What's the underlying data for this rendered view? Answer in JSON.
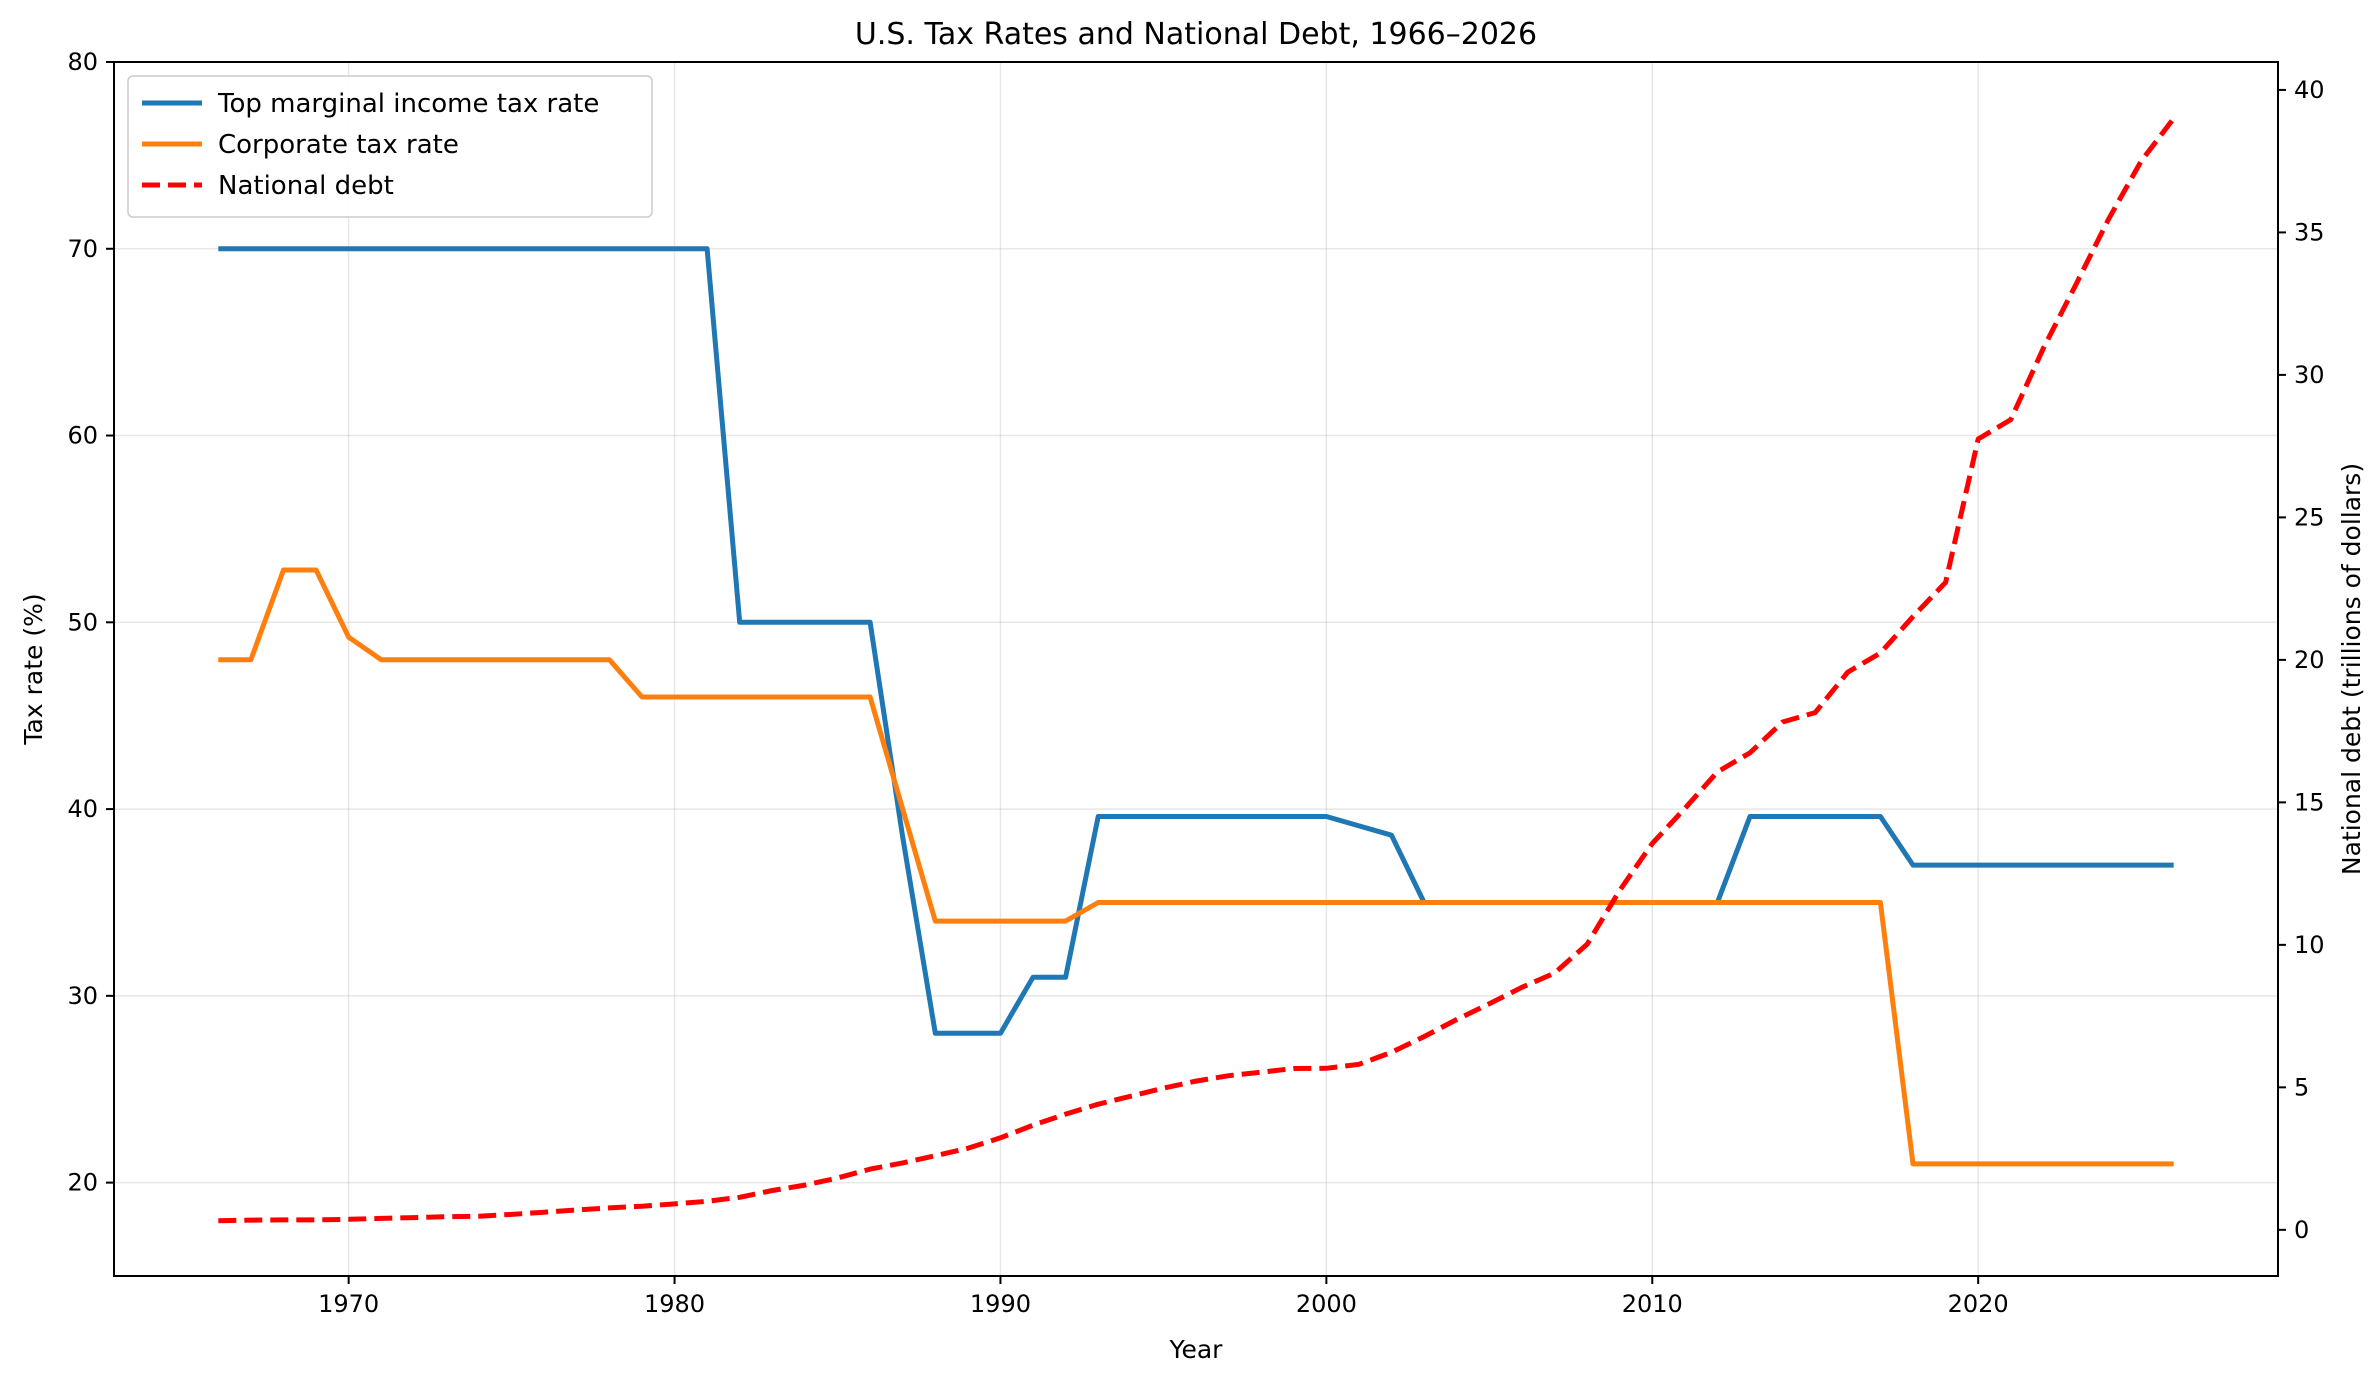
{
  "chart_data": {
    "type": "line",
    "title": "U.S. Tax Rates and National Debt, 1966–2026",
    "xlabel": "Year",
    "ylabel_left": "Tax rate (%)",
    "ylabel_right": "National debt (trillions of dollars)",
    "xlim": [
      1962.8,
      2029.2
    ],
    "ylim_left": [
      15,
      80
    ],
    "ylim_right": [
      -1.62,
      40.98
    ],
    "xticks": [
      1970,
      1980,
      1990,
      2000,
      2010,
      2020
    ],
    "yticks_left": [
      20,
      30,
      40,
      50,
      60,
      70,
      80
    ],
    "yticks_right": [
      0,
      5,
      10,
      15,
      20,
      25,
      30,
      35,
      40
    ],
    "grid": true,
    "legend_position": "upper-left",
    "x": [
      1966,
      1967,
      1968,
      1969,
      1970,
      1971,
      1972,
      1973,
      1974,
      1975,
      1976,
      1977,
      1978,
      1979,
      1980,
      1981,
      1982,
      1983,
      1984,
      1985,
      1986,
      1987,
      1988,
      1989,
      1990,
      1991,
      1992,
      1993,
      1994,
      1995,
      1996,
      1997,
      1998,
      1999,
      2000,
      2001,
      2002,
      2003,
      2004,
      2005,
      2006,
      2007,
      2008,
      2009,
      2010,
      2011,
      2012,
      2013,
      2014,
      2015,
      2016,
      2017,
      2018,
      2019,
      2020,
      2021,
      2022,
      2023,
      2024,
      2025,
      2026
    ],
    "series": [
      {
        "name": "Top marginal income tax rate",
        "axis": "left",
        "color": "#1f77b4",
        "style": "solid",
        "values": [
          70,
          70,
          70,
          70,
          70,
          70,
          70,
          70,
          70,
          70,
          70,
          70,
          70,
          70,
          70,
          70,
          50,
          50,
          50,
          50,
          50,
          38.5,
          28,
          28,
          28,
          31,
          31,
          39.6,
          39.6,
          39.6,
          39.6,
          39.6,
          39.6,
          39.6,
          39.6,
          39.1,
          38.6,
          35,
          35,
          35,
          35,
          35,
          35,
          35,
          35,
          35,
          35,
          39.6,
          39.6,
          39.6,
          39.6,
          39.6,
          37,
          37,
          37,
          37,
          37,
          37,
          37,
          37,
          37
        ]
      },
      {
        "name": "Corporate tax rate",
        "axis": "left",
        "color": "#ff7f0e",
        "style": "solid",
        "values": [
          48,
          48,
          52.8,
          52.8,
          49.2,
          48,
          48,
          48,
          48,
          48,
          48,
          48,
          48,
          46,
          46,
          46,
          46,
          46,
          46,
          46,
          46,
          40,
          34,
          34,
          34,
          34,
          34,
          35,
          35,
          35,
          35,
          35,
          35,
          35,
          35,
          35,
          35,
          35,
          35,
          35,
          35,
          35,
          35,
          35,
          35,
          35,
          35,
          35,
          35,
          35,
          35,
          35,
          21,
          21,
          21,
          21,
          21,
          21,
          21,
          21,
          21
        ]
      },
      {
        "name": "National debt",
        "axis": "right",
        "color": "#ff0000",
        "style": "dashed",
        "values": [
          0.32,
          0.34,
          0.35,
          0.35,
          0.37,
          0.4,
          0.43,
          0.46,
          0.48,
          0.54,
          0.62,
          0.7,
          0.77,
          0.83,
          0.91,
          1.0,
          1.14,
          1.38,
          1.57,
          1.82,
          2.13,
          2.35,
          2.6,
          2.86,
          3.23,
          3.67,
          4.06,
          4.41,
          4.69,
          4.97,
          5.22,
          5.41,
          5.53,
          5.66,
          5.67,
          5.81,
          6.23,
          6.78,
          7.38,
          7.93,
          8.51,
          9.01,
          10.02,
          11.91,
          13.56,
          14.79,
          16.07,
          16.74,
          17.82,
          18.15,
          19.57,
          20.24,
          21.52,
          22.72,
          27.75,
          28.43,
          30.93,
          33.17,
          35.46,
          37.5,
          39.0
        ]
      }
    ]
  }
}
